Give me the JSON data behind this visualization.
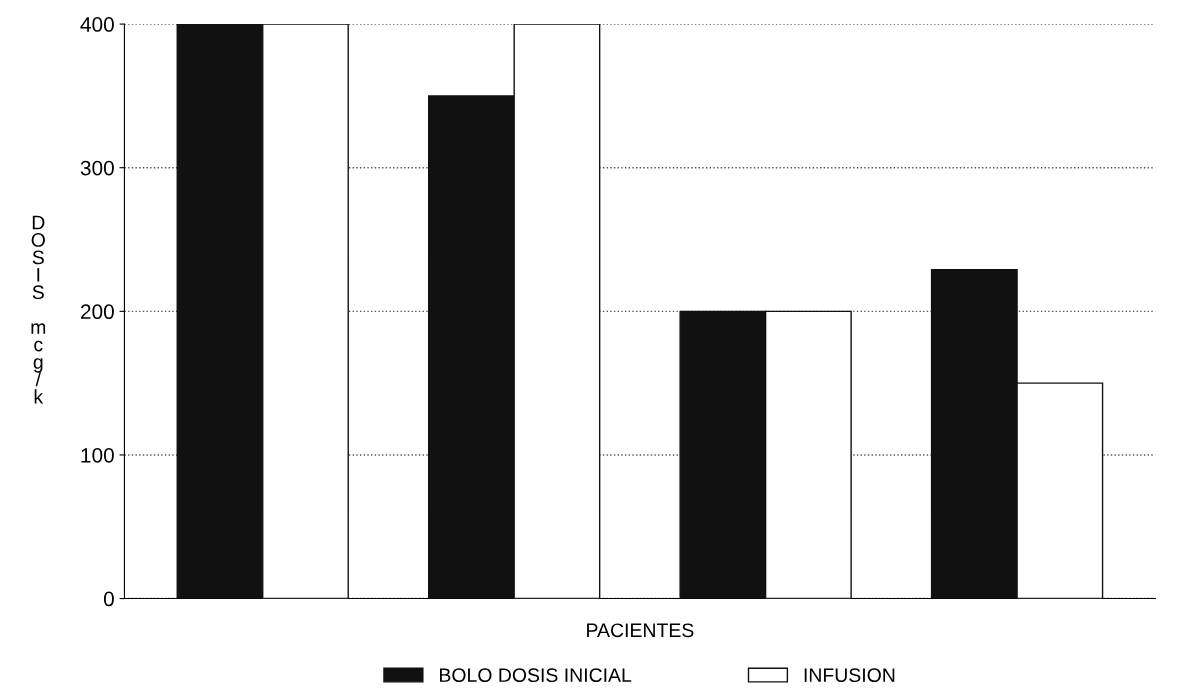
{
  "chart_data": {
    "type": "bar",
    "xlabel": "PACIENTES",
    "ylabel": "DOSIS mcg/k",
    "categories": [
      null,
      null,
      null,
      null
    ],
    "series": [
      {
        "name": "BOLO DOSIS INICIAL",
        "color": "#111111",
        "values": [
          400,
          350,
          200,
          229
        ]
      },
      {
        "name": "INFUSION",
        "color": "#ffffff",
        "values": [
          400,
          400,
          200,
          150
        ]
      }
    ],
    "ylim": [
      0,
      400
    ],
    "yticks": [
      0,
      100,
      200,
      300,
      400
    ],
    "grid": "y",
    "legend": "bottom"
  }
}
